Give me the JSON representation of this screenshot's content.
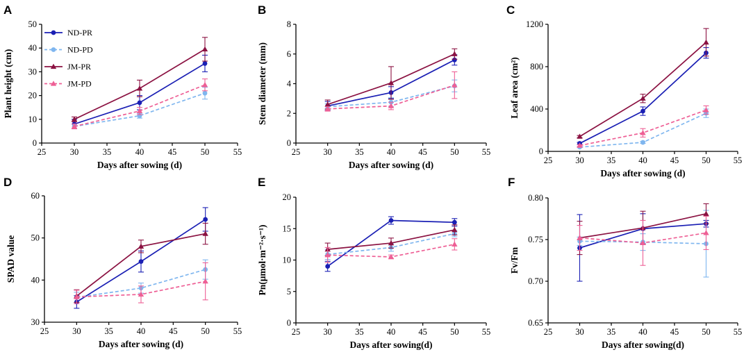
{
  "colors": {
    "ND-PR": "#1a1fb4",
    "ND-PD": "#7fb6ef",
    "JM-PR": "#8b1242",
    "JM-PD": "#ee5f95"
  },
  "legend": {
    "entries": [
      "ND-PR",
      "ND-PD",
      "JM-PR",
      "JM-PD"
    ],
    "placement": "top-left of panel A"
  },
  "chart_data": [
    {
      "panel": "A",
      "type": "line",
      "title": "",
      "xlabel": "Days after sowing (d)",
      "ylabel": "Plant height (cm)",
      "xlim": [
        25,
        55
      ],
      "ylim": [
        0,
        50
      ],
      "x_ticks": [
        25,
        30,
        35,
        40,
        45,
        50,
        55
      ],
      "y_ticks": [
        0,
        10,
        20,
        30,
        40,
        50
      ],
      "x": [
        30,
        40,
        50
      ],
      "series": [
        {
          "name": "ND-PR",
          "values": [
            8,
            17,
            33.5
          ],
          "errors": [
            2,
            3,
            3.5
          ]
        },
        {
          "name": "ND-PD",
          "values": [
            7,
            11.5,
            21
          ],
          "errors": [
            1,
            1,
            2.5
          ]
        },
        {
          "name": "JM-PR",
          "values": [
            10,
            23,
            39.5
          ],
          "errors": [
            1,
            3.5,
            5
          ]
        },
        {
          "name": "JM-PD",
          "values": [
            7,
            13.5,
            24.5
          ],
          "errors": [
            1,
            1.5,
            2.5
          ]
        }
      ]
    },
    {
      "panel": "B",
      "type": "line",
      "title": "",
      "xlabel": "Days after sowing (d)",
      "ylabel": "Stem diameter (mm)",
      "xlim": [
        25,
        55
      ],
      "ylim": [
        0,
        8
      ],
      "x_ticks": [
        25,
        30,
        35,
        40,
        45,
        50,
        55
      ],
      "y_ticks": [
        0,
        2,
        4,
        6,
        8
      ],
      "x": [
        30,
        40,
        50
      ],
      "series": [
        {
          "name": "ND-PR",
          "values": [
            2.5,
            3.4,
            5.6
          ],
          "errors": [
            0.3,
            0.4,
            0.35
          ]
        },
        {
          "name": "ND-PD",
          "values": [
            2.45,
            2.75,
            3.85
          ],
          "errors": [
            0.2,
            0.3,
            0.4
          ]
        },
        {
          "name": "JM-PR",
          "values": [
            2.6,
            4.05,
            6.0
          ],
          "errors": [
            0.3,
            1.1,
            0.35
          ]
        },
        {
          "name": "JM-PD",
          "values": [
            2.3,
            2.5,
            3.9
          ],
          "errors": [
            0.15,
            0.25,
            0.9
          ]
        }
      ]
    },
    {
      "panel": "C",
      "type": "line",
      "title": "",
      "xlabel": "Days after sowing (d)",
      "ylabel": "Leaf area (cm²)",
      "xlim": [
        25,
        55
      ],
      "ylim": [
        0,
        1200
      ],
      "x_ticks": [
        25,
        30,
        35,
        40,
        45,
        50,
        55
      ],
      "y_ticks": [
        0,
        400,
        800,
        1200
      ],
      "x": [
        30,
        40,
        50
      ],
      "series": [
        {
          "name": "ND-PR",
          "values": [
            75,
            380,
            930
          ],
          "errors": [
            10,
            40,
            50
          ]
        },
        {
          "name": "ND-PD",
          "values": [
            40,
            85,
            360
          ],
          "errors": [
            5,
            10,
            40
          ]
        },
        {
          "name": "JM-PR",
          "values": [
            140,
            500,
            1030
          ],
          "errors": [
            10,
            40,
            130
          ]
        },
        {
          "name": "JM-PD",
          "values": [
            55,
            175,
            390
          ],
          "errors": [
            8,
            40,
            40
          ]
        }
      ]
    },
    {
      "panel": "D",
      "type": "line",
      "title": "",
      "xlabel": "Days after sowing (d)",
      "ylabel": "SPAD value",
      "xlim": [
        25,
        55
      ],
      "ylim": [
        30,
        60
      ],
      "x_ticks": [
        25,
        30,
        35,
        40,
        45,
        50,
        55
      ],
      "y_ticks": [
        30,
        40,
        50,
        60
      ],
      "x": [
        30,
        40,
        50
      ],
      "series": [
        {
          "name": "ND-PR",
          "values": [
            34.8,
            44.4,
            54.4
          ],
          "errors": [
            1.5,
            2.5,
            2.8
          ]
        },
        {
          "name": "ND-PD",
          "values": [
            35.9,
            38.1,
            42.5
          ],
          "errors": [
            1.2,
            1.2,
            2.3
          ]
        },
        {
          "name": "JM-PR",
          "values": [
            36.2,
            48.0,
            51.0
          ],
          "errors": [
            1.5,
            1.5,
            2.5
          ]
        },
        {
          "name": "JM-PD",
          "values": [
            36.0,
            36.6,
            39.7
          ],
          "errors": [
            1.6,
            2.0,
            4.4
          ]
        }
      ]
    },
    {
      "panel": "E",
      "type": "line",
      "title": "",
      "xlabel": "Days after sowing(d)",
      "ylabel": "Pn(μmol·m⁻²·s⁻¹)",
      "xlim": [
        25,
        55
      ],
      "ylim": [
        0,
        20
      ],
      "x_ticks": [
        25,
        30,
        35,
        40,
        45,
        50,
        55
      ],
      "y_ticks": [
        0,
        5,
        10,
        15,
        20
      ],
      "x": [
        30,
        40,
        50
      ],
      "series": [
        {
          "name": "ND-PR",
          "values": [
            9.0,
            16.3,
            16.0
          ],
          "errors": [
            0.8,
            0.6,
            0.6
          ]
        },
        {
          "name": "ND-PD",
          "values": [
            10.9,
            12.0,
            14.2
          ],
          "errors": [
            0.8,
            0.6,
            0.5
          ]
        },
        {
          "name": "JM-PR",
          "values": [
            11.7,
            12.7,
            14.8
          ],
          "errors": [
            1.0,
            0.8,
            0.8
          ]
        },
        {
          "name": "JM-PD",
          "values": [
            10.8,
            10.5,
            12.5
          ],
          "errors": [
            1.2,
            0.3,
            0.9
          ]
        }
      ]
    },
    {
      "panel": "F",
      "type": "line",
      "title": "",
      "xlabel": "Days after sowing(d)",
      "ylabel": "Fv/Fm",
      "xlim": [
        25,
        55
      ],
      "ylim": [
        0.65,
        0.8
      ],
      "x_ticks": [
        25,
        30,
        35,
        40,
        45,
        50,
        55
      ],
      "y_ticks": [
        0.65,
        0.7,
        0.75,
        0.8
      ],
      "x": [
        30,
        40,
        50
      ],
      "series": [
        {
          "name": "ND-PR",
          "values": [
            0.74,
            0.763,
            0.769
          ],
          "errors": [
            0.04,
            0.018,
            0.004
          ]
        },
        {
          "name": "ND-PD",
          "values": [
            0.748,
            0.747,
            0.745
          ],
          "errors": [
            0.005,
            0.01,
            0.04
          ]
        },
        {
          "name": "JM-PR",
          "values": [
            0.752,
            0.764,
            0.781
          ],
          "errors": [
            0.02,
            0.02,
            0.012
          ]
        },
        {
          "name": "JM-PD",
          "values": [
            0.752,
            0.746,
            0.758
          ],
          "errors": [
            0.015,
            0.027,
            0.02
          ]
        }
      ]
    }
  ]
}
